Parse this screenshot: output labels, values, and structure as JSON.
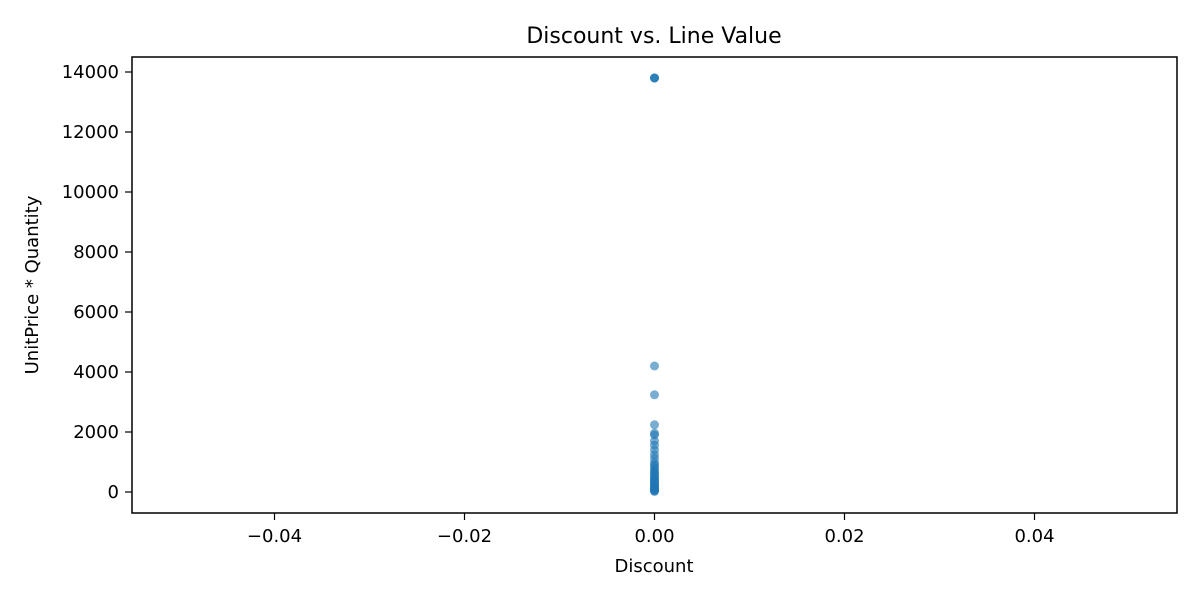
{
  "chart_data": {
    "type": "scatter",
    "title": "Discount vs. Line Value",
    "xlabel": "Discount",
    "ylabel": "UnitPrice * Quantity",
    "xlim": [
      -0.055,
      0.055
    ],
    "ylim": [
      -700,
      14500
    ],
    "x_ticks": [
      -0.04,
      -0.02,
      0.0,
      0.02,
      0.04
    ],
    "x_tick_labels": [
      "−0.04",
      "−0.02",
      "0.00",
      "0.02",
      "0.04"
    ],
    "y_ticks": [
      0,
      2000,
      4000,
      6000,
      8000,
      10000,
      12000,
      14000
    ],
    "y_tick_labels": [
      "0",
      "2000",
      "4000",
      "6000",
      "8000",
      "10000",
      "12000",
      "14000"
    ],
    "grid": false,
    "marker_color": "#1f77b4",
    "marker_alpha": 0.6,
    "points": [
      {
        "x": 0,
        "y": 13800
      },
      {
        "x": 0,
        "y": 13800
      },
      {
        "x": 0,
        "y": 13800
      },
      {
        "x": 0,
        "y": 4200
      },
      {
        "x": 0,
        "y": 3240
      },
      {
        "x": 0,
        "y": 2240
      },
      {
        "x": 0,
        "y": 1960
      },
      {
        "x": 0,
        "y": 1900
      },
      {
        "x": 0,
        "y": 1700
      },
      {
        "x": 0,
        "y": 1560
      },
      {
        "x": 0,
        "y": 1400
      },
      {
        "x": 0,
        "y": 1240
      },
      {
        "x": 0,
        "y": 1120
      },
      {
        "x": 0,
        "y": 980
      },
      {
        "x": 0,
        "y": 900
      },
      {
        "x": 0,
        "y": 840
      },
      {
        "x": 0,
        "y": 760
      },
      {
        "x": 0,
        "y": 700
      },
      {
        "x": 0,
        "y": 640
      },
      {
        "x": 0,
        "y": 600
      },
      {
        "x": 0,
        "y": 540
      },
      {
        "x": 0,
        "y": 480
      },
      {
        "x": 0,
        "y": 440
      },
      {
        "x": 0,
        "y": 400
      },
      {
        "x": 0,
        "y": 360
      },
      {
        "x": 0,
        "y": 320
      },
      {
        "x": 0,
        "y": 280
      },
      {
        "x": 0,
        "y": 240
      },
      {
        "x": 0,
        "y": 200
      },
      {
        "x": 0,
        "y": 170
      },
      {
        "x": 0,
        "y": 140
      },
      {
        "x": 0,
        "y": 110
      },
      {
        "x": 0,
        "y": 80
      },
      {
        "x": 0,
        "y": 60
      },
      {
        "x": 0,
        "y": 40
      },
      {
        "x": 0,
        "y": 20
      }
    ]
  }
}
